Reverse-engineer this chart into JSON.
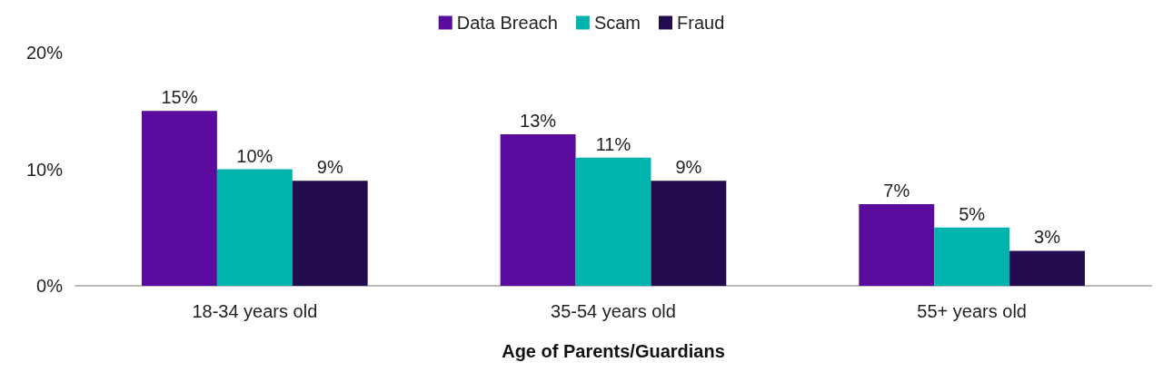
{
  "chart_data": {
    "type": "bar",
    "xlabel": "Age of Parents/Guardians",
    "categories": [
      "18-34 years old",
      "35-54 years old",
      "55+ years old"
    ],
    "series": [
      {
        "name": "Data Breach",
        "color": "#5a0a9c",
        "values": [
          15,
          13,
          7
        ],
        "value_labels": [
          "15%",
          "13%",
          "7%"
        ]
      },
      {
        "name": "Scam",
        "color": "#00b4ad",
        "values": [
          10,
          11,
          5
        ],
        "value_labels": [
          "10%",
          "11%",
          "5%"
        ]
      },
      {
        "name": "Fraud",
        "color": "#230b4f",
        "values": [
          9,
          9,
          3
        ],
        "value_labels": [
          "9%",
          "9%",
          "3%"
        ]
      }
    ],
    "ylim": [
      0,
      20
    ],
    "yticks": [
      {
        "value": 0,
        "label": "0%"
      },
      {
        "value": 10,
        "label": "10%"
      },
      {
        "value": 20,
        "label": "20%"
      }
    ],
    "grid": false,
    "legend": "top"
  }
}
